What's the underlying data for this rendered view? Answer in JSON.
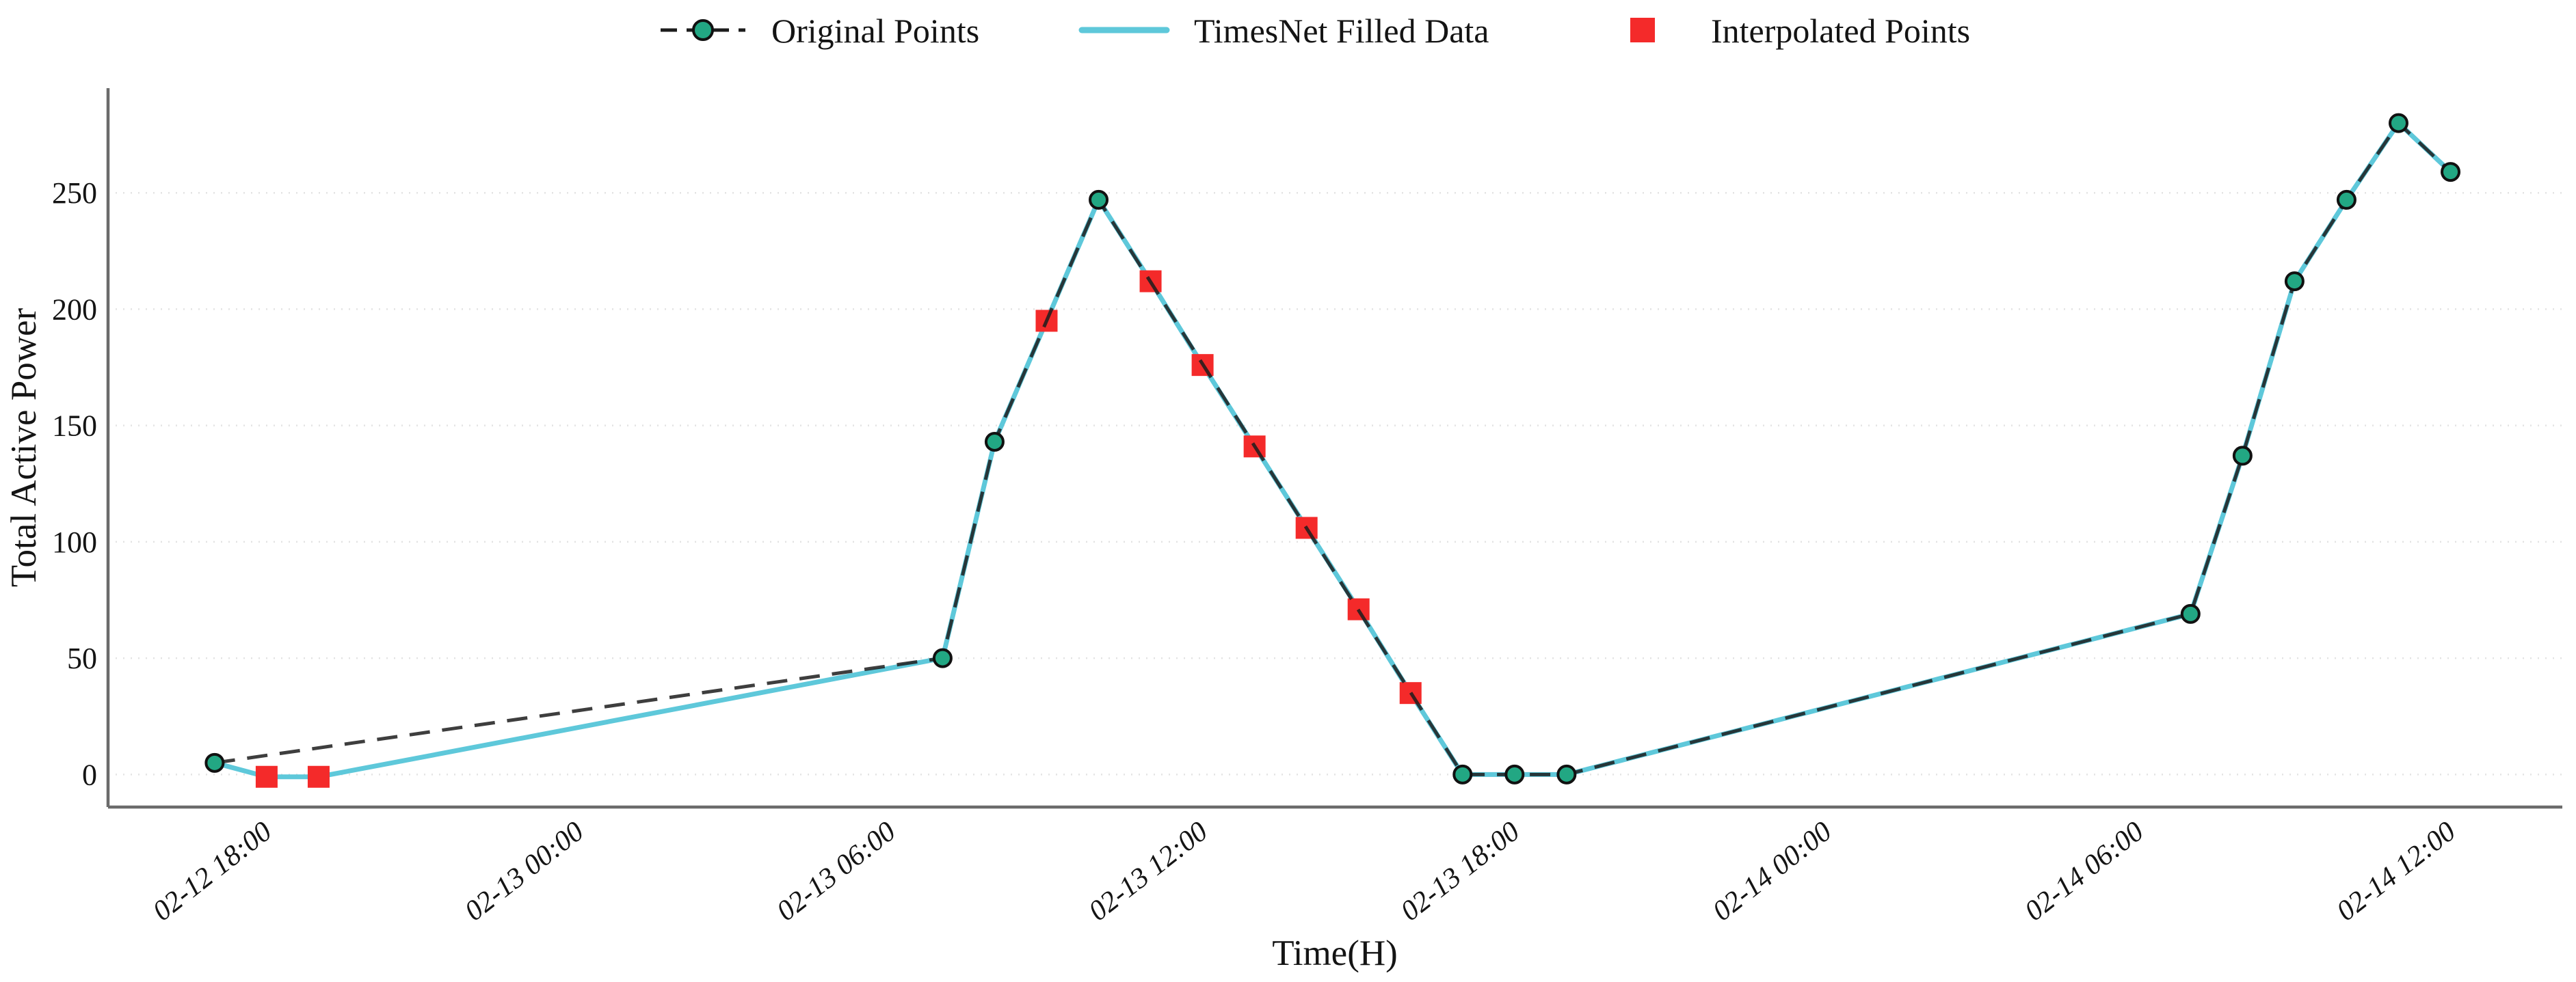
{
  "figure": {
    "ylabel": "Total Active Power",
    "xlabel": "Time(H)",
    "legend": [
      {
        "label": "Original Points",
        "marker": "dashed-line-with-circle-icon"
      },
      {
        "label": "TimesNet Filled Data",
        "marker": "solid-line-icon"
      },
      {
        "label": "Interpolated Points",
        "marker": "red-square-icon"
      }
    ],
    "colors": {
      "original_line": "#1c1c1c",
      "original_marker_fill": "#22a783",
      "original_marker_edge": "#111111",
      "timesnet_line": "#5ec8da",
      "interpolated_marker": "#f42a2a",
      "grid": "#e3e3e3",
      "spine": "#6b6b6b",
      "text": "#141414"
    }
  },
  "chart_data": {
    "type": "line",
    "title": "",
    "xlabel": "Time(H)",
    "ylabel": "Total Active Power",
    "grid": "horizontal-dotted",
    "legend_position": "top-center",
    "xlim_hours": [
      14.95,
      62.15
    ],
    "ylim": [
      -14,
      295
    ],
    "yticks": [
      0,
      50,
      100,
      150,
      200,
      250
    ],
    "xticks": [
      "02-12 18:00",
      "02-13 00:00",
      "02-13 06:00",
      "02-13 12:00",
      "02-13 18:00",
      "02-14 00:00",
      "02-14 06:00",
      "02-14 12:00"
    ],
    "series": [
      {
        "name": "TimesNet Filled Data",
        "style": "solid",
        "points": [
          {
            "time": "02-12 17:00",
            "value": 5
          },
          {
            "time": "02-12 18:00",
            "value": -1
          },
          {
            "time": "02-12 19:00",
            "value": -1
          },
          {
            "time": "02-13 07:00",
            "value": 50
          },
          {
            "time": "02-13 08:00",
            "value": 143
          },
          {
            "time": "02-13 09:00",
            "value": 195
          },
          {
            "time": "02-13 10:00",
            "value": 247
          },
          {
            "time": "02-13 11:00",
            "value": 212
          },
          {
            "time": "02-13 12:00",
            "value": 176
          },
          {
            "time": "02-13 13:00",
            "value": 141
          },
          {
            "time": "02-13 14:00",
            "value": 106
          },
          {
            "time": "02-13 15:00",
            "value": 71
          },
          {
            "time": "02-13 16:00",
            "value": 35
          },
          {
            "time": "02-13 17:00",
            "value": 0
          },
          {
            "time": "02-13 18:00",
            "value": 0
          },
          {
            "time": "02-13 19:00",
            "value": 0
          },
          {
            "time": "02-14 07:00",
            "value": 69
          },
          {
            "time": "02-14 08:00",
            "value": 137
          },
          {
            "time": "02-14 09:00",
            "value": 212
          },
          {
            "time": "02-14 10:00",
            "value": 247
          },
          {
            "time": "02-14 11:00",
            "value": 280
          },
          {
            "time": "02-14 12:00",
            "value": 259
          }
        ]
      },
      {
        "name": "Original Points",
        "style": "dashed",
        "points": [
          {
            "time": "02-12 17:00",
            "value": 5
          },
          {
            "time": "02-13 07:00",
            "value": 50
          },
          {
            "time": "02-13 08:00",
            "value": 143
          },
          {
            "time": "02-13 10:00",
            "value": 247
          },
          {
            "time": "02-13 17:00",
            "value": 0
          },
          {
            "time": "02-13 18:00",
            "value": 0
          },
          {
            "time": "02-13 19:00",
            "value": 0
          },
          {
            "time": "02-14 07:00",
            "value": 69
          },
          {
            "time": "02-14 08:00",
            "value": 137
          },
          {
            "time": "02-14 09:00",
            "value": 212
          },
          {
            "time": "02-14 10:00",
            "value": 247
          },
          {
            "time": "02-14 11:00",
            "value": 280
          },
          {
            "time": "02-14 12:00",
            "value": 259
          }
        ]
      },
      {
        "name": "Interpolated Points",
        "style": "markers-only",
        "points": [
          {
            "time": "02-12 18:00",
            "value": -1
          },
          {
            "time": "02-12 19:00",
            "value": -1
          },
          {
            "time": "02-13 09:00",
            "value": 195
          },
          {
            "time": "02-13 11:00",
            "value": 212
          },
          {
            "time": "02-13 12:00",
            "value": 176
          },
          {
            "time": "02-13 13:00",
            "value": 141
          },
          {
            "time": "02-13 14:00",
            "value": 106
          },
          {
            "time": "02-13 15:00",
            "value": 71
          },
          {
            "time": "02-13 16:00",
            "value": 35
          }
        ]
      }
    ]
  }
}
